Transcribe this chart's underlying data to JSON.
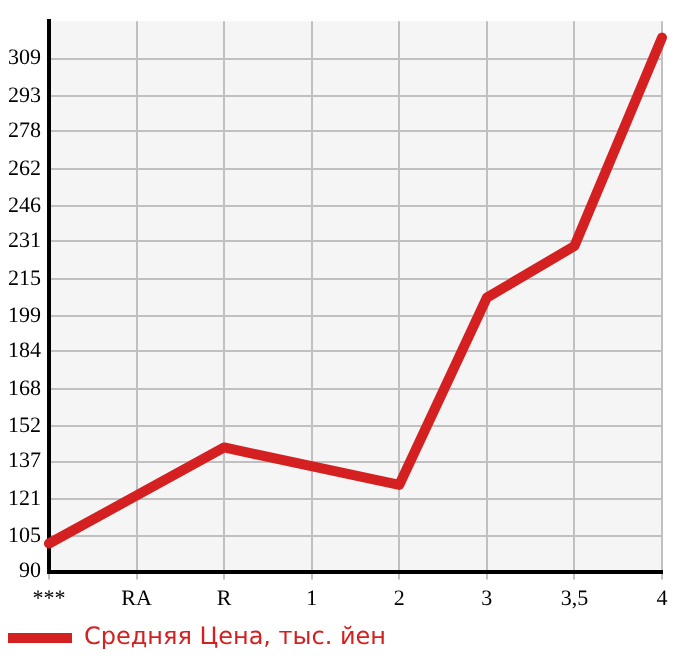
{
  "chart_data": {
    "type": "line",
    "categories": [
      "***",
      "RA",
      "R",
      "1",
      "2",
      "3",
      "3,5",
      "4"
    ],
    "series": [
      {
        "name": "Средняя Цена, тыс. йен",
        "color": "#d42020",
        "values": [
          102,
          null,
          143,
          null,
          127,
          207,
          229,
          318
        ]
      }
    ],
    "ylim": [
      90,
      325
    ],
    "yticks": [
      90,
      105,
      121,
      137,
      152,
      168,
      184,
      199,
      215,
      231,
      246,
      262,
      278,
      293,
      309
    ],
    "grid": true,
    "legend": "bottom left",
    "marker": "none",
    "line_style": "solid"
  }
}
